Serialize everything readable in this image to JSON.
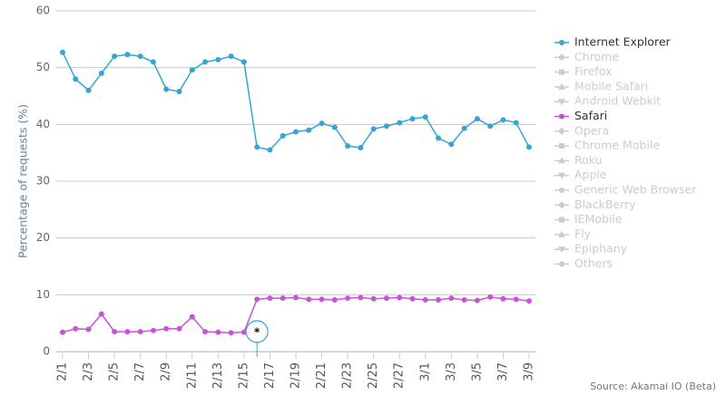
{
  "chart_data": {
    "type": "line",
    "y_axis_label": "Percentage of requests (%)",
    "source": "Source: Akamai IO (Beta)",
    "annotation": "*",
    "categories": [
      "2/1",
      null,
      "2/3",
      null,
      "2/5",
      null,
      "2/7",
      null,
      "2/9",
      null,
      "2/11",
      null,
      "2/13",
      null,
      "2/15",
      null,
      "2/17",
      null,
      "2/19",
      null,
      "2/21",
      null,
      "2/23",
      null,
      "2/25",
      null,
      "2/27",
      null,
      "3/1",
      null,
      "3/3",
      null,
      "3/5",
      null,
      "3/7",
      null,
      "3/9"
    ],
    "series": [
      {
        "name": "Internet Explorer",
        "color": "#35a5d6",
        "values": [
          52.7,
          48,
          46,
          49,
          52,
          52.3,
          52,
          51,
          46.2,
          45.8,
          49.6,
          51,
          51.4,
          52,
          51,
          36,
          35.5,
          38,
          38.7,
          39,
          40.2,
          39.5,
          36.2,
          35.9,
          39.2,
          39.7,
          40.3,
          41,
          41.3,
          37.6,
          36.5,
          39.3,
          41,
          39.7,
          40.8,
          40.3,
          36
        ]
      },
      {
        "name": "Safari",
        "color": "#c653d8",
        "values": [
          3.4,
          4,
          3.9,
          6.6,
          3.5,
          3.5,
          3.5,
          3.7,
          4,
          4,
          6.1,
          3.5,
          3.4,
          3.3,
          3.4,
          9.2,
          9.4,
          9.4,
          9.5,
          9.2,
          9.2,
          9.1,
          9.4,
          9.5,
          9.3,
          9.4,
          9.5,
          9.3,
          9.1,
          9.1,
          9.4,
          9.1,
          9,
          9.6,
          9.3,
          9.2,
          8.9
        ]
      }
    ],
    "legend_items": [
      "Internet Explorer",
      "Chrome",
      "Firefox",
      "Mobile Safari",
      "Android Webkit",
      "Safari",
      "Opera",
      "Chrome Mobile",
      "Roku",
      "Apple",
      "Generic Web Browser",
      "BlackBerry",
      "IEMobile",
      "Fly",
      "Epiphany",
      "Others"
    ],
    "inactive_color": "#cccccc",
    "ylim": [
      0,
      60
    ],
    "yticks": [
      0,
      10,
      20,
      30,
      40,
      50,
      60
    ],
    "grid": true
  }
}
